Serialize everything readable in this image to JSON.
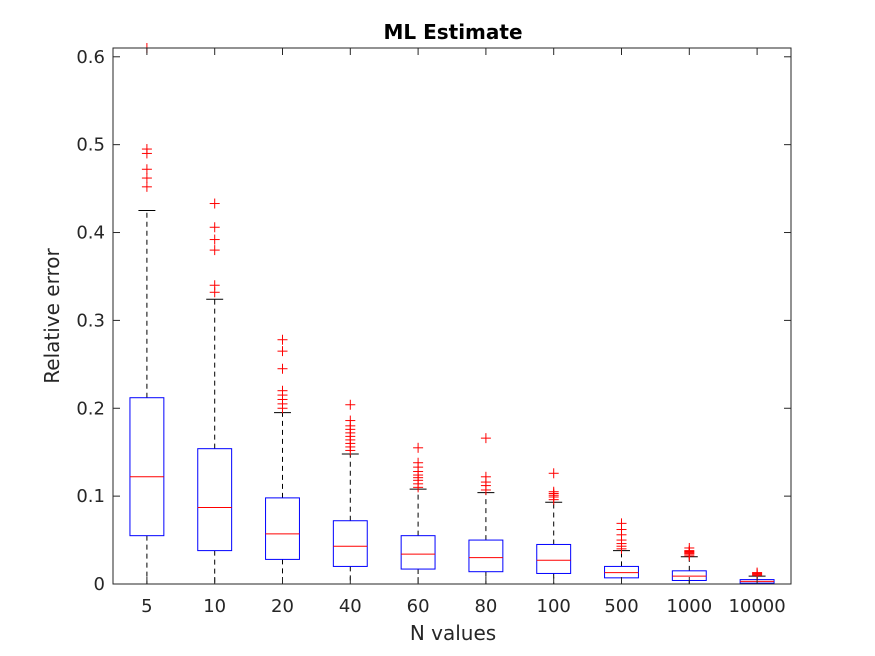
{
  "chart_data": {
    "type": "boxplot",
    "title": "ML Estimate",
    "xlabel": "N values",
    "ylabel": "Relative error",
    "ylim": [
      0,
      0.61
    ],
    "yticks": [
      0,
      0.1,
      0.2,
      0.3,
      0.4,
      0.5,
      0.6
    ],
    "ytick_labels": [
      "0",
      "0.1",
      "0.2",
      "0.3",
      "0.4",
      "0.5",
      "0.6"
    ],
    "categories": [
      "5",
      "10",
      "20",
      "40",
      "60",
      "80",
      "100",
      "500",
      "1000",
      "10000"
    ],
    "grid": false,
    "colors": {
      "box": "#0000ff",
      "median": "#ff0000",
      "whisker": "#000000",
      "outlier": "#ff0000",
      "axis": "#262626"
    },
    "boxes": [
      {
        "category": "5",
        "whisker_low": 0.0,
        "q1": 0.055,
        "median": 0.122,
        "q3": 0.212,
        "whisker_high": 0.425,
        "outliers": [
          0.452,
          0.462,
          0.472,
          0.49,
          0.495,
          0.61
        ]
      },
      {
        "category": "10",
        "whisker_low": 0.0,
        "q1": 0.038,
        "median": 0.087,
        "q3": 0.154,
        "whisker_high": 0.324,
        "outliers": [
          0.332,
          0.34,
          0.38,
          0.392,
          0.406,
          0.433
        ]
      },
      {
        "category": "20",
        "whisker_low": 0.0,
        "q1": 0.028,
        "median": 0.057,
        "q3": 0.098,
        "whisker_high": 0.195,
        "outliers": [
          0.2,
          0.205,
          0.21,
          0.215,
          0.22,
          0.245,
          0.265,
          0.278
        ]
      },
      {
        "category": "40",
        "whisker_low": 0.0,
        "q1": 0.02,
        "median": 0.043,
        "q3": 0.072,
        "whisker_high": 0.148,
        "outliers": [
          0.152,
          0.156,
          0.16,
          0.164,
          0.168,
          0.172,
          0.176,
          0.18,
          0.186,
          0.204
        ]
      },
      {
        "category": "60",
        "whisker_low": 0.0,
        "q1": 0.017,
        "median": 0.034,
        "q3": 0.055,
        "whisker_high": 0.108,
        "outliers": [
          0.11,
          0.114,
          0.118,
          0.121,
          0.124,
          0.128,
          0.133,
          0.138,
          0.155
        ]
      },
      {
        "category": "80",
        "whisker_low": 0.0,
        "q1": 0.014,
        "median": 0.03,
        "q3": 0.05,
        "whisker_high": 0.104,
        "outliers": [
          0.107,
          0.112,
          0.116,
          0.122,
          0.166
        ]
      },
      {
        "category": "100",
        "whisker_low": 0.0,
        "q1": 0.012,
        "median": 0.027,
        "q3": 0.045,
        "whisker_high": 0.093,
        "outliers": [
          0.096,
          0.099,
          0.101,
          0.103,
          0.105,
          0.126
        ]
      },
      {
        "category": "500",
        "whisker_low": 0.0,
        "q1": 0.007,
        "median": 0.013,
        "q3": 0.02,
        "whisker_high": 0.038,
        "outliers": [
          0.04,
          0.043,
          0.046,
          0.05,
          0.056,
          0.062,
          0.069
        ]
      },
      {
        "category": "1000",
        "whisker_low": 0.0,
        "q1": 0.004,
        "median": 0.009,
        "q3": 0.015,
        "whisker_high": 0.031,
        "outliers": [
          0.032,
          0.034,
          0.035,
          0.036,
          0.037,
          0.038,
          0.041
        ]
      },
      {
        "category": "10000",
        "whisker_low": 0.0,
        "q1": 0.001,
        "median": 0.003,
        "q3": 0.005,
        "whisker_high": 0.009,
        "outliers": [
          0.01,
          0.011,
          0.012,
          0.013
        ]
      }
    ]
  }
}
